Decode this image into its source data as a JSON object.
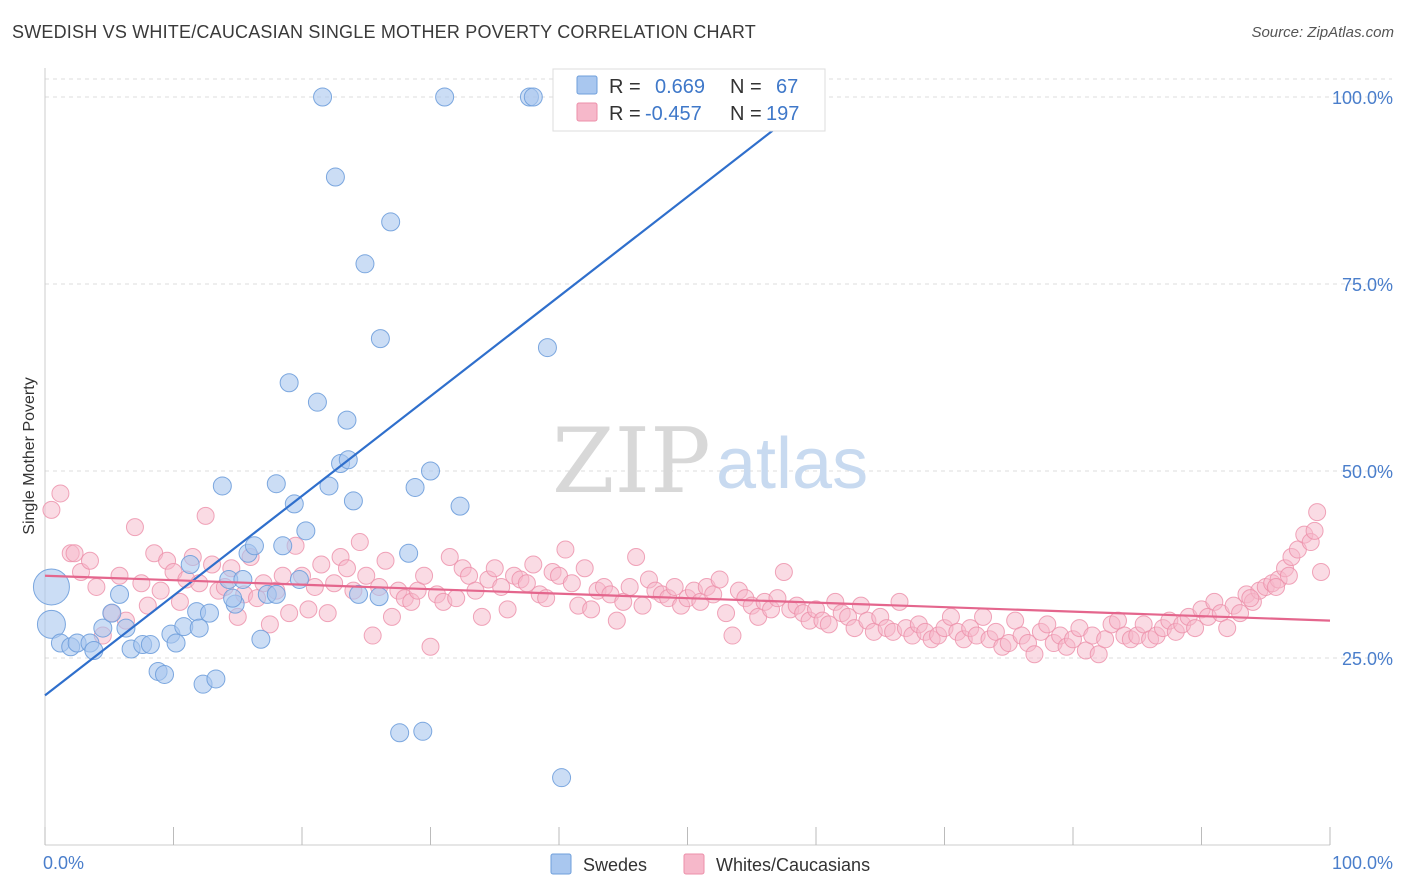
{
  "title": "SWEDISH VS WHITE/CAUCASIAN SINGLE MOTHER POVERTY CORRELATION CHART",
  "source": "Source: ZipAtlas.com",
  "watermark": {
    "zip": "ZIP",
    "atlas": "atlas"
  },
  "legend": {
    "rows": [
      {
        "r_label": "R =",
        "r_value": "0.669",
        "n_label": "N =",
        "n_value": "67",
        "color": "#a9c7ef"
      },
      {
        "r_label": "R =",
        "r_value": "-0.457",
        "n_label": "N =",
        "n_value": "197",
        "color": "#f6b8ca"
      }
    ]
  },
  "bottom_legend": [
    {
      "label": "Swedes",
      "color": "#a9c7ef"
    },
    {
      "label": "Whites/Caucasians",
      "color": "#f6b8ca"
    }
  ],
  "chart_data": {
    "type": "scatter",
    "title": "SWEDISH VS WHITE/CAUCASIAN SINGLE MOTHER POVERTY CORRELATION CHART",
    "xlabel": "",
    "ylabel": "Single Mother Poverty",
    "xlim": [
      0,
      100
    ],
    "ylim": [
      0,
      100
    ],
    "x_tick_labels": [
      "0.0%",
      "100.0%"
    ],
    "y_tick_labels": [
      "25.0%",
      "50.0%",
      "75.0%",
      "100.0%"
    ],
    "y_ticks": [
      25,
      50,
      75,
      100
    ],
    "grid": true,
    "legend_position": "top",
    "series": [
      {
        "name": "Swedes",
        "color": "#a9c7ef",
        "stroke": "#6f9fdb",
        "trend": {
          "x": [
            0,
            60
          ],
          "y": [
            20.0,
            100.0
          ],
          "color": "#2f6fcc"
        },
        "points": [
          [
            0.5,
            34.5,
            18
          ],
          [
            0.5,
            29.5,
            14
          ],
          [
            1.2,
            27.0,
            9
          ],
          [
            2.0,
            26.5,
            9
          ],
          [
            2.5,
            27.0,
            9
          ],
          [
            3.5,
            27.0,
            9
          ],
          [
            3.8,
            26.0,
            9
          ],
          [
            4.5,
            29.0,
            9
          ],
          [
            5.2,
            31.0,
            9
          ],
          [
            5.8,
            33.5,
            9
          ],
          [
            6.3,
            29.0,
            9
          ],
          [
            6.7,
            26.2,
            9
          ],
          [
            7.6,
            26.8,
            9
          ],
          [
            8.2,
            26.8,
            9
          ],
          [
            8.8,
            23.2,
            9
          ],
          [
            9.3,
            22.8,
            9
          ],
          [
            9.8,
            28.2,
            9
          ],
          [
            10.2,
            27.0,
            9
          ],
          [
            10.8,
            29.2,
            9
          ],
          [
            11.3,
            37.5,
            9
          ],
          [
            11.8,
            31.2,
            9
          ],
          [
            12.3,
            21.5,
            9
          ],
          [
            12.8,
            31.0,
            9
          ],
          [
            13.3,
            22.2,
            9
          ],
          [
            13.8,
            48.0,
            9
          ],
          [
            14.3,
            35.5,
            9
          ],
          [
            14.8,
            32.2,
            9
          ],
          [
            15.4,
            35.5,
            9
          ],
          [
            15.8,
            39.0,
            9
          ],
          [
            16.3,
            40.0,
            9
          ],
          [
            16.8,
            27.5,
            9
          ],
          [
            17.3,
            33.5,
            9
          ],
          [
            18.0,
            48.3,
            9
          ],
          [
            18.5,
            40.0,
            9
          ],
          [
            19.0,
            61.8,
            9
          ],
          [
            19.4,
            45.6,
            9
          ],
          [
            19.8,
            35.5,
            9
          ],
          [
            20.3,
            42.0,
            9
          ],
          [
            21.2,
            59.2,
            9
          ],
          [
            21.6,
            100.0,
            9
          ],
          [
            22.1,
            48.0,
            9
          ],
          [
            22.6,
            89.3,
            9
          ],
          [
            23.0,
            51.0,
            9
          ],
          [
            23.5,
            56.8,
            9
          ],
          [
            24.0,
            46.0,
            9
          ],
          [
            24.4,
            33.5,
            9
          ],
          [
            24.9,
            77.7,
            9
          ],
          [
            26.0,
            33.2,
            9
          ],
          [
            26.1,
            67.7,
            9
          ],
          [
            26.9,
            83.3,
            9
          ],
          [
            27.6,
            15.0,
            9
          ],
          [
            29.4,
            15.2,
            9
          ],
          [
            28.3,
            39.0,
            9
          ],
          [
            28.8,
            47.8,
            9
          ],
          [
            30.0,
            50.0,
            9
          ],
          [
            31.1,
            100.0,
            9
          ],
          [
            32.3,
            45.3,
            9
          ],
          [
            37.7,
            100.0,
            9
          ],
          [
            38.0,
            100.0,
            9
          ],
          [
            39.1,
            66.5,
            9
          ],
          [
            40.2,
            9.0,
            9
          ],
          [
            42.9,
            100.0,
            9
          ],
          [
            44.5,
            100.0,
            9
          ],
          [
            23.6,
            51.5,
            9
          ],
          [
            18.0,
            33.5,
            9
          ],
          [
            12.0,
            29.0,
            9
          ],
          [
            14.6,
            33.0,
            9
          ]
        ]
      },
      {
        "name": "Whites/Caucasians",
        "color": "#f6b8ca",
        "stroke": "#ec8fa9",
        "trend": {
          "x": [
            0,
            100
          ],
          "y": [
            36.0,
            30.0
          ],
          "color": "#e4668d"
        },
        "points": [
          [
            0.5,
            44.8
          ],
          [
            1.2,
            47.0
          ],
          [
            2.0,
            39.0
          ],
          [
            2.3,
            39.0
          ],
          [
            2.8,
            36.5
          ],
          [
            3.5,
            38.0
          ],
          [
            4.0,
            34.5
          ],
          [
            4.5,
            28.0
          ],
          [
            5.2,
            31.0
          ],
          [
            5.8,
            36.0
          ],
          [
            6.3,
            30.0
          ],
          [
            7.0,
            42.5
          ],
          [
            7.5,
            35.0
          ],
          [
            8.0,
            32.0
          ],
          [
            8.5,
            39.0
          ],
          [
            9.0,
            34.0
          ],
          [
            9.5,
            38.0
          ],
          [
            10.0,
            36.5
          ],
          [
            10.5,
            32.5
          ],
          [
            11.0,
            35.5
          ],
          [
            11.5,
            38.5
          ],
          [
            12.0,
            35.0
          ],
          [
            12.5,
            44.0
          ],
          [
            13.0,
            37.5
          ],
          [
            13.5,
            34.0
          ],
          [
            14.0,
            34.5
          ],
          [
            14.5,
            37.0
          ],
          [
            15.0,
            30.5
          ],
          [
            15.5,
            33.5
          ],
          [
            16.0,
            38.5
          ],
          [
            16.5,
            33.0
          ],
          [
            17.0,
            35.0
          ],
          [
            17.5,
            29.5
          ],
          [
            18.0,
            34.0
          ],
          [
            18.5,
            36.0
          ],
          [
            19.0,
            31.0
          ],
          [
            19.5,
            40.0
          ],
          [
            20.0,
            36.0
          ],
          [
            20.5,
            31.5
          ],
          [
            21.0,
            34.5
          ],
          [
            21.5,
            37.5
          ],
          [
            22.0,
            31.0
          ],
          [
            22.5,
            35.0
          ],
          [
            23.0,
            38.5
          ],
          [
            23.5,
            37.0
          ],
          [
            24.0,
            34.0
          ],
          [
            24.5,
            40.5
          ],
          [
            25.0,
            36.0
          ],
          [
            25.5,
            28.0
          ],
          [
            26.0,
            34.5
          ],
          [
            26.5,
            38.0
          ],
          [
            27.0,
            30.5
          ],
          [
            27.5,
            34.0
          ],
          [
            28.0,
            33.0
          ],
          [
            28.5,
            32.5
          ],
          [
            29.0,
            34.0
          ],
          [
            29.5,
            36.0
          ],
          [
            30.0,
            26.5
          ],
          [
            30.5,
            33.5
          ],
          [
            31.0,
            32.5
          ],
          [
            31.5,
            38.5
          ],
          [
            32.0,
            33.0
          ],
          [
            32.5,
            37.0
          ],
          [
            33.0,
            36.0
          ],
          [
            33.5,
            34.0
          ],
          [
            34.0,
            30.5
          ],
          [
            34.5,
            35.5
          ],
          [
            35.0,
            37.0
          ],
          [
            35.5,
            34.5
          ],
          [
            36.0,
            31.5
          ],
          [
            36.5,
            36.0
          ],
          [
            37.0,
            35.5
          ],
          [
            37.5,
            35.0
          ],
          [
            38.0,
            37.5
          ],
          [
            38.5,
            33.5
          ],
          [
            39.0,
            33.0
          ],
          [
            39.5,
            36.5
          ],
          [
            40.0,
            36.0
          ],
          [
            40.5,
            39.5
          ],
          [
            41.0,
            35.0
          ],
          [
            41.5,
            32.0
          ],
          [
            42.0,
            37.0
          ],
          [
            42.5,
            31.5
          ],
          [
            43.0,
            34.0
          ],
          [
            43.5,
            34.5
          ],
          [
            44.0,
            33.5
          ],
          [
            44.5,
            30.0
          ],
          [
            45.0,
            32.5
          ],
          [
            45.5,
            34.5
          ],
          [
            46.0,
            38.5
          ],
          [
            46.5,
            32.0
          ],
          [
            47.0,
            35.5
          ],
          [
            47.5,
            34.0
          ],
          [
            48.0,
            33.5
          ],
          [
            48.5,
            33.0
          ],
          [
            49.0,
            34.5
          ],
          [
            49.5,
            32.0
          ],
          [
            50.0,
            33.0
          ],
          [
            50.5,
            34.0
          ],
          [
            51.0,
            32.5
          ],
          [
            51.5,
            34.5
          ],
          [
            52.0,
            33.5
          ],
          [
            52.5,
            35.5
          ],
          [
            53.0,
            31.0
          ],
          [
            53.5,
            28.0
          ],
          [
            54.0,
            34.0
          ],
          [
            54.5,
            33.0
          ],
          [
            55.0,
            32.0
          ],
          [
            55.5,
            30.5
          ],
          [
            56.0,
            32.5
          ],
          [
            56.5,
            31.5
          ],
          [
            57.0,
            33.0
          ],
          [
            57.5,
            36.5
          ],
          [
            58.0,
            31.5
          ],
          [
            58.5,
            32.0
          ],
          [
            59.0,
            31.0
          ],
          [
            59.5,
            30.0
          ],
          [
            60.0,
            31.5
          ],
          [
            60.5,
            30.0
          ],
          [
            61.0,
            29.5
          ],
          [
            61.5,
            32.5
          ],
          [
            62.0,
            31.0
          ],
          [
            62.5,
            30.5
          ],
          [
            63.0,
            29.0
          ],
          [
            63.5,
            32.0
          ],
          [
            64.0,
            30.0
          ],
          [
            64.5,
            28.5
          ],
          [
            65.0,
            30.5
          ],
          [
            65.5,
            29.0
          ],
          [
            66.0,
            28.5
          ],
          [
            66.5,
            32.5
          ],
          [
            67.0,
            29.0
          ],
          [
            67.5,
            28.0
          ],
          [
            68.0,
            29.5
          ],
          [
            68.5,
            28.5
          ],
          [
            69.0,
            27.5
          ],
          [
            69.5,
            28.0
          ],
          [
            70.0,
            29.0
          ],
          [
            70.5,
            30.5
          ],
          [
            71.0,
            28.5
          ],
          [
            71.5,
            27.5
          ],
          [
            72.0,
            29.0
          ],
          [
            72.5,
            28.0
          ],
          [
            73.0,
            30.5
          ],
          [
            73.5,
            27.5
          ],
          [
            74.0,
            28.5
          ],
          [
            74.5,
            26.5
          ],
          [
            75.0,
            27.0
          ],
          [
            75.5,
            30.0
          ],
          [
            76.0,
            28.0
          ],
          [
            76.5,
            27.0
          ],
          [
            77.0,
            25.5
          ],
          [
            77.5,
            28.5
          ],
          [
            78.0,
            29.5
          ],
          [
            78.5,
            27.0
          ],
          [
            79.0,
            28.0
          ],
          [
            79.5,
            26.5
          ],
          [
            80.0,
            27.5
          ],
          [
            80.5,
            29.0
          ],
          [
            81.0,
            26.0
          ],
          [
            81.5,
            28.0
          ],
          [
            82.0,
            25.5
          ],
          [
            82.5,
            27.5
          ],
          [
            83.0,
            29.5
          ],
          [
            83.5,
            30.0
          ],
          [
            84.0,
            28.0
          ],
          [
            84.5,
            27.5
          ],
          [
            85.0,
            28.0
          ],
          [
            85.5,
            29.5
          ],
          [
            86.0,
            27.5
          ],
          [
            86.5,
            28.0
          ],
          [
            87.0,
            29.0
          ],
          [
            87.5,
            30.0
          ],
          [
            88.0,
            28.5
          ],
          [
            88.5,
            29.5
          ],
          [
            89.0,
            30.5
          ],
          [
            89.5,
            29.0
          ],
          [
            90.0,
            31.5
          ],
          [
            90.5,
            30.5
          ],
          [
            91.0,
            32.5
          ],
          [
            91.5,
            31.0
          ],
          [
            92.0,
            29.0
          ],
          [
            92.5,
            32.0
          ],
          [
            93.0,
            31.0
          ],
          [
            93.5,
            33.5
          ],
          [
            94.0,
            32.5
          ],
          [
            94.5,
            34.0
          ],
          [
            95.0,
            34.5
          ],
          [
            95.5,
            35.0
          ],
          [
            96.0,
            35.5
          ],
          [
            96.5,
            37.0
          ],
          [
            97.0,
            38.5
          ],
          [
            97.5,
            39.5
          ],
          [
            98.0,
            41.5
          ],
          [
            98.5,
            40.5
          ],
          [
            99.0,
            44.5
          ],
          [
            99.3,
            36.5
          ],
          [
            98.8,
            42.0
          ],
          [
            96.8,
            36.0
          ],
          [
            95.8,
            34.5
          ],
          [
            93.8,
            33.0
          ]
        ]
      }
    ]
  }
}
